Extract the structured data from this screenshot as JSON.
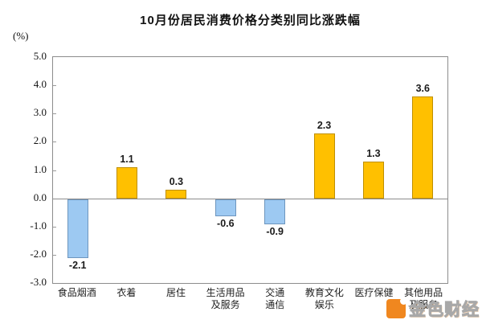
{
  "chart_data": {
    "type": "bar",
    "title": "10月份居民消费价格分类别同比涨跌幅",
    "unit_label": "(%)",
    "categories": [
      "食品烟酒",
      "衣着",
      "居住",
      "生活用品及服务",
      "交通通信",
      "教育文化娱乐",
      "医疗保健",
      "其他用品及服务"
    ],
    "category_lines": [
      [
        "食品烟酒"
      ],
      [
        "衣着"
      ],
      [
        "居住"
      ],
      [
        "生活用品",
        "及服务"
      ],
      [
        "交通",
        "通信"
      ],
      [
        "教育文化",
        "娱乐"
      ],
      [
        "医疗保健"
      ],
      [
        "其他用品",
        "及服务"
      ]
    ],
    "values": [
      -2.1,
      1.1,
      0.3,
      -0.6,
      -0.9,
      2.3,
      1.3,
      3.6
    ],
    "value_labels": [
      "-2.1",
      "1.1",
      "0.3",
      "-0.6",
      "-0.9",
      "2.3",
      "1.3",
      "3.6"
    ],
    "ylim": [
      -3.0,
      5.0
    ],
    "ytick_labels": [
      "5.0",
      "4.0",
      "3.0",
      "2.0",
      "1.0",
      "0.0",
      "-1.0",
      "-2.0",
      "-3.0"
    ],
    "grid": "off",
    "legend": "none",
    "positive_color": "#FFC000",
    "positive_border": "#BF8F00",
    "negative_color": "#9DC9F2",
    "negative_border": "#6E96BE"
  },
  "watermark": {
    "text": "金色财经",
    "logo_color": "#f0871f"
  }
}
